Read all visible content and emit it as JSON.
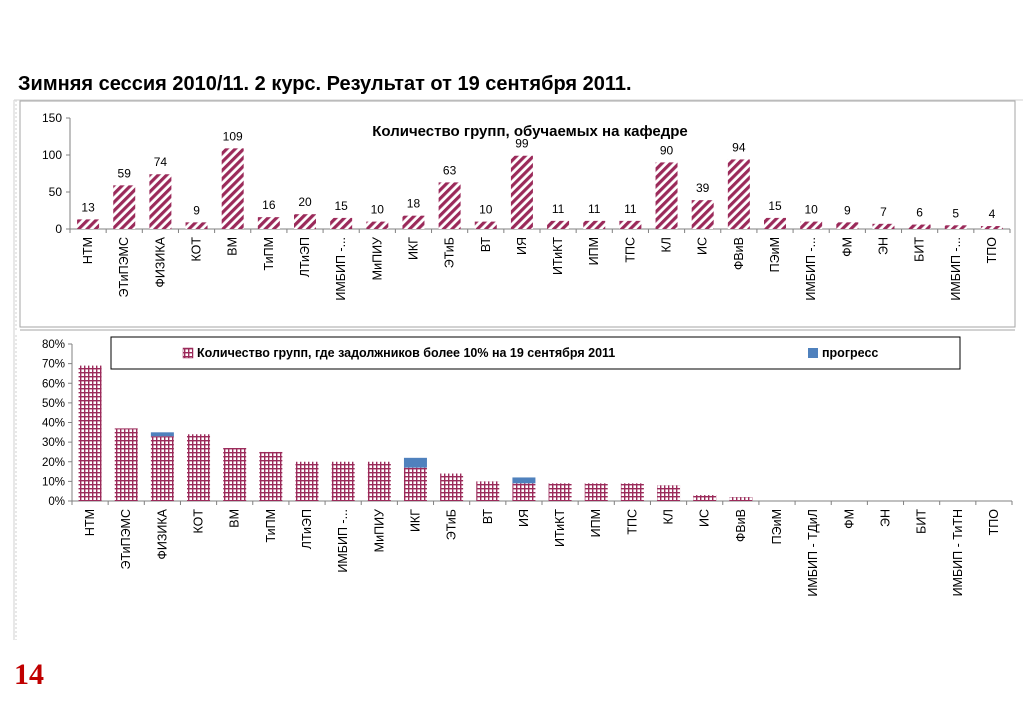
{
  "slide": {
    "title": "Зимняя сессия 2010/11. 2 курс. Результат от 19 сентября 2011.",
    "page_number": "14"
  },
  "colors": {
    "bar_hatch": "#9b2a5a",
    "progress": "#4f81bd",
    "axis": "#808080",
    "frame": "#a6a6a6",
    "page_number": "#c00000"
  },
  "chart_data": [
    {
      "type": "bar",
      "title": "Количество групп, обучаемых на кафедре",
      "categories": [
        "НТМ",
        "ЭТиПЭМС",
        "ФИЗИКА",
        "КОТ",
        "ВМ",
        "ТиПМ",
        "ЛТиЭП",
        "ИМБИП -...",
        "МиПИУ",
        "ИКГ",
        "ЭТиБ",
        "ВТ",
        "ИЯ",
        "ИТиКТ",
        "ИПМ",
        "ТПС",
        "КЛ",
        "ИС",
        "ФВиВ",
        "ПЭиМ",
        "ИМБИП -...",
        "ФМ",
        "ЭН",
        "БИТ",
        "ИМБИП -...",
        "ТПО"
      ],
      "values": [
        13,
        59,
        74,
        9,
        109,
        16,
        20,
        15,
        10,
        18,
        63,
        10,
        99,
        11,
        11,
        11,
        90,
        39,
        94,
        15,
        10,
        9,
        7,
        6,
        5,
        4
      ],
      "ylim": [
        0,
        150
      ],
      "yticks": [
        0,
        50,
        100,
        150
      ],
      "grid": false,
      "data_labels": true
    },
    {
      "type": "bar",
      "stacked": true,
      "categories": [
        "НТМ",
        "ЭТиПЭМС",
        "ФИЗИКА",
        "КОТ",
        "ВМ",
        "ТиПМ",
        "ЛТиЭП",
        "ИМБИП -...",
        "МиПИУ",
        "ИКГ",
        "ЭТиБ",
        "ВТ",
        "ИЯ",
        "ИТиКТ",
        "ИПМ",
        "ТПС",
        "КЛ",
        "ИС",
        "ФВиВ",
        "ПЭиМ",
        "ИМБИП - ТДиЛ",
        "ФМ",
        "ЭН",
        "БИТ",
        "ИМБИП - ТиТН",
        "ТПО"
      ],
      "series": [
        {
          "name": "Количество групп, где задолжников более  10% на 19 сентября 2011",
          "values": [
            69,
            37,
            33,
            34,
            27,
            25,
            20,
            20,
            20,
            17,
            14,
            10,
            9,
            9,
            9,
            9,
            8,
            3,
            2,
            0,
            0,
            0,
            0,
            0,
            0,
            0
          ]
        },
        {
          "name": "прогресс",
          "values": [
            0,
            0,
            2,
            0,
            0,
            0,
            0,
            0,
            0,
            5,
            0,
            0,
            3,
            0,
            0,
            0,
            0,
            0,
            0,
            0,
            0,
            0,
            0,
            0,
            0,
            0
          ]
        }
      ],
      "ylim": [
        0,
        80
      ],
      "yticks": [
        "0%",
        "10%",
        "20%",
        "30%",
        "40%",
        "50%",
        "60%",
        "70%",
        "80%"
      ],
      "legend": "top",
      "grid": false
    }
  ]
}
